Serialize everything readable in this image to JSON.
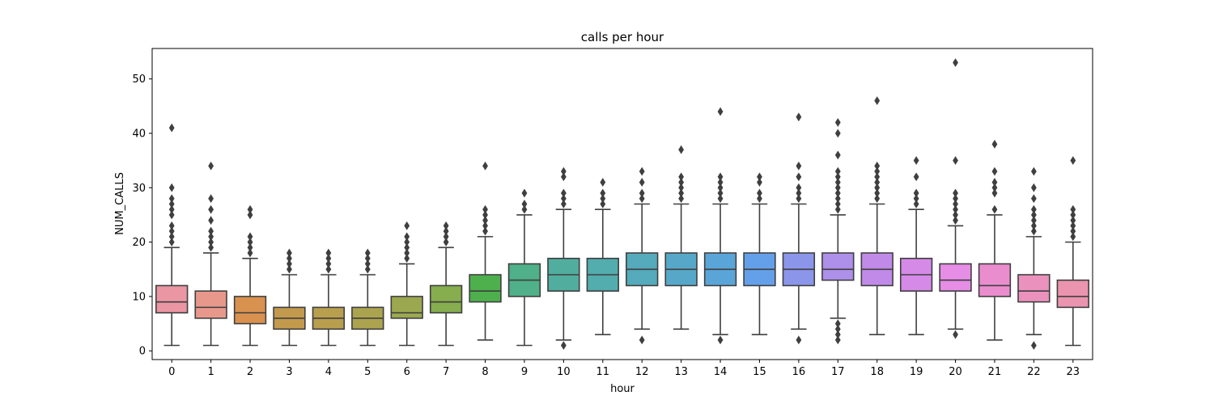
{
  "chart_data": {
    "type": "box",
    "title": "calls per hour",
    "xlabel": "hour",
    "ylabel": "NUM_CALLS",
    "ylim": [
      -1.6,
      55.6
    ],
    "yticks": [
      "0",
      "10",
      "20",
      "30",
      "40",
      "50"
    ],
    "grid": false,
    "categories": [
      "0",
      "1",
      "2",
      "3",
      "4",
      "5",
      "6",
      "7",
      "8",
      "9",
      "10",
      "11",
      "12",
      "13",
      "14",
      "15",
      "16",
      "17",
      "18",
      "19",
      "20",
      "21",
      "22",
      "23"
    ],
    "colors": [
      "#ea96a3",
      "#e8978b",
      "#d9914f",
      "#c3994d",
      "#b89f4e",
      "#aca34f",
      "#9ba84f",
      "#86ad4e",
      "#4db04d",
      "#4fb089",
      "#51ae9f",
      "#53acad",
      "#55aabb",
      "#57a8c8",
      "#5aa5d7",
      "#64a0ea",
      "#8b96ea",
      "#ae8fe9",
      "#c18ae8",
      "#d58ae8",
      "#e68de6",
      "#ea8dce",
      "#ea91bd",
      "#ea94b0"
    ],
    "series": [
      {
        "category": "0",
        "whislo": 1,
        "q1": 7,
        "median": 9,
        "q3": 12,
        "whishi": 19,
        "fliers": [
          20,
          21,
          22,
          23,
          25,
          26,
          27,
          28,
          30,
          41
        ]
      },
      {
        "category": "1",
        "whislo": 1,
        "q1": 6,
        "median": 8,
        "q3": 11,
        "whishi": 18,
        "fliers": [
          19,
          20,
          21,
          22,
          24,
          26,
          28,
          34
        ]
      },
      {
        "category": "2",
        "whislo": 1,
        "q1": 5,
        "median": 7,
        "q3": 10,
        "whishi": 17,
        "fliers": [
          18,
          19,
          20,
          21,
          25,
          26
        ]
      },
      {
        "category": "3",
        "whislo": 1,
        "q1": 4,
        "median": 6,
        "q3": 8,
        "whishi": 14,
        "fliers": [
          15,
          16,
          17,
          18
        ]
      },
      {
        "category": "4",
        "whislo": 1,
        "q1": 4,
        "median": 6,
        "q3": 8,
        "whishi": 14,
        "fliers": [
          15,
          16,
          17,
          18
        ]
      },
      {
        "category": "5",
        "whislo": 1,
        "q1": 4,
        "median": 6,
        "q3": 8,
        "whishi": 14,
        "fliers": [
          15,
          16,
          17,
          18
        ]
      },
      {
        "category": "6",
        "whislo": 1,
        "q1": 6,
        "median": 7,
        "q3": 10,
        "whishi": 16,
        "fliers": [
          17,
          18,
          19,
          20,
          21,
          23
        ]
      },
      {
        "category": "7",
        "whislo": 1,
        "q1": 7,
        "median": 9,
        "q3": 12,
        "whishi": 19,
        "fliers": [
          20,
          21,
          22,
          23
        ]
      },
      {
        "category": "8",
        "whislo": 2,
        "q1": 9,
        "median": 11,
        "q3": 14,
        "whishi": 21,
        "fliers": [
          22,
          23,
          24,
          25,
          26,
          34
        ]
      },
      {
        "category": "9",
        "whislo": 1,
        "q1": 10,
        "median": 13,
        "q3": 16,
        "whishi": 25,
        "fliers": [
          26,
          27,
          29
        ]
      },
      {
        "category": "10",
        "whislo": 2,
        "q1": 11,
        "median": 14,
        "q3": 17,
        "whishi": 26,
        "fliers": [
          1,
          27,
          28,
          29,
          32,
          33
        ]
      },
      {
        "category": "11",
        "whislo": 3,
        "q1": 11,
        "median": 14,
        "q3": 17,
        "whishi": 26,
        "fliers": [
          27,
          28,
          29,
          31
        ]
      },
      {
        "category": "12",
        "whislo": 4,
        "q1": 12,
        "median": 15,
        "q3": 18,
        "whishi": 27,
        "fliers": [
          2,
          28,
          29,
          31,
          33
        ]
      },
      {
        "category": "13",
        "whislo": 4,
        "q1": 12,
        "median": 15,
        "q3": 18,
        "whishi": 27,
        "fliers": [
          28,
          29,
          30,
          31,
          32,
          37
        ]
      },
      {
        "category": "14",
        "whislo": 3,
        "q1": 12,
        "median": 15,
        "q3": 18,
        "whishi": 27,
        "fliers": [
          2,
          28,
          29,
          30,
          31,
          32,
          44
        ]
      },
      {
        "category": "15",
        "whislo": 3,
        "q1": 12,
        "median": 15,
        "q3": 18,
        "whishi": 27,
        "fliers": [
          28,
          29,
          31,
          32
        ]
      },
      {
        "category": "16",
        "whislo": 4,
        "q1": 12,
        "median": 15,
        "q3": 18,
        "whishi": 27,
        "fliers": [
          2,
          28,
          29,
          30,
          32,
          34,
          43
        ]
      },
      {
        "category": "17",
        "whislo": 6,
        "q1": 13,
        "median": 15,
        "q3": 18,
        "whishi": 25,
        "fliers": [
          2,
          3,
          4,
          5,
          26,
          27,
          28,
          29,
          30,
          31,
          32,
          33,
          36,
          40,
          42
        ]
      },
      {
        "category": "18",
        "whislo": 3,
        "q1": 12,
        "median": 15,
        "q3": 18,
        "whishi": 27,
        "fliers": [
          28,
          29,
          30,
          31,
          32,
          33,
          34,
          46
        ]
      },
      {
        "category": "19",
        "whislo": 3,
        "q1": 11,
        "median": 14,
        "q3": 17,
        "whishi": 26,
        "fliers": [
          27,
          28,
          29,
          32,
          35
        ]
      },
      {
        "category": "20",
        "whislo": 4,
        "q1": 11,
        "median": 13,
        "q3": 16,
        "whishi": 23,
        "fliers": [
          3,
          24,
          25,
          26,
          27,
          28,
          29,
          35,
          53
        ]
      },
      {
        "category": "21",
        "whislo": 2,
        "q1": 10,
        "median": 12,
        "q3": 16,
        "whishi": 25,
        "fliers": [
          26,
          29,
          30,
          31,
          33,
          38
        ]
      },
      {
        "category": "22",
        "whislo": 3,
        "q1": 9,
        "median": 11,
        "q3": 14,
        "whishi": 21,
        "fliers": [
          1,
          22,
          23,
          24,
          25,
          26,
          28,
          30,
          33
        ]
      },
      {
        "category": "23",
        "whislo": 1,
        "q1": 8,
        "median": 10,
        "q3": 13,
        "whishi": 20,
        "fliers": [
          21,
          22,
          23,
          24,
          25,
          26,
          35
        ]
      }
    ]
  }
}
